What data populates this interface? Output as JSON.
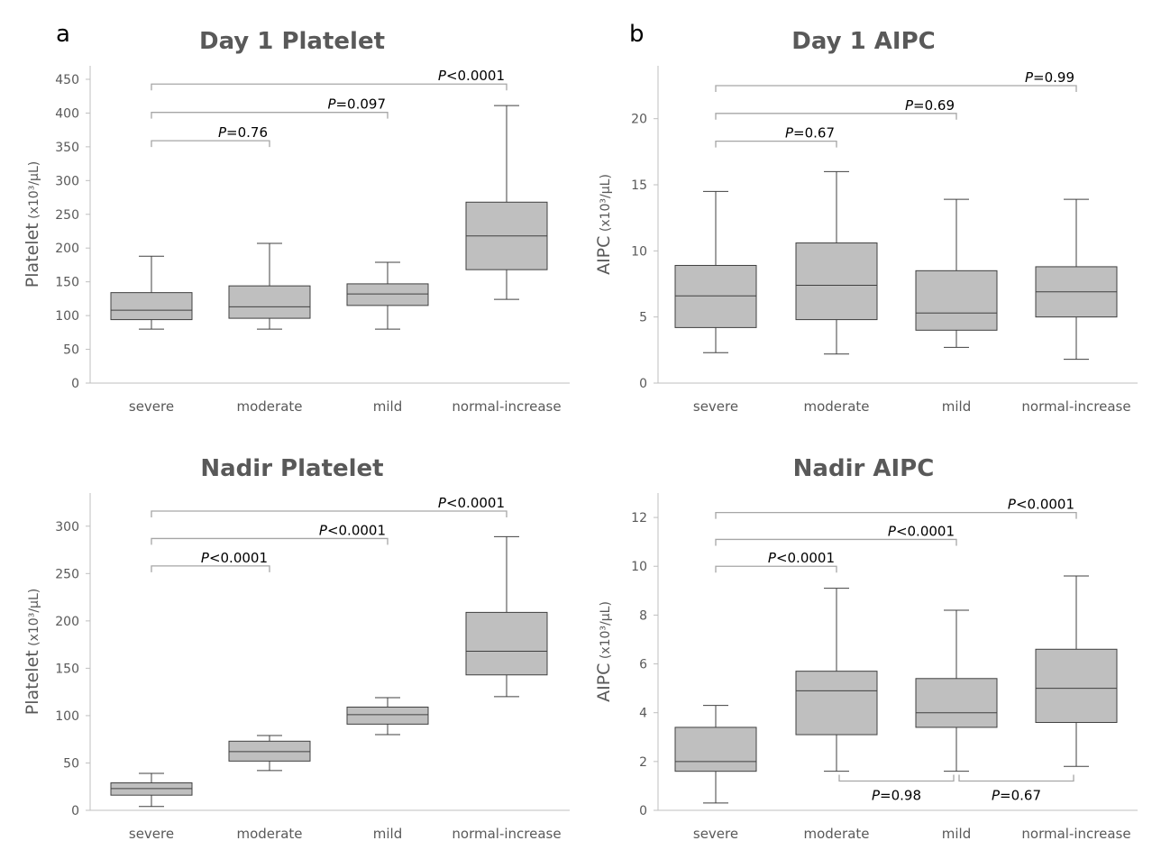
{
  "colors": {
    "box_fill": "#bfbfbf",
    "box_stroke": "#404040",
    "axis": "#bfbfbf",
    "bracket": "#a6a6a6",
    "text": "#595959"
  },
  "panel_labels": [
    "a",
    "b"
  ],
  "chart_data": [
    {
      "type": "box",
      "title": "Day 1 Platelet",
      "ylabel_main": "Platelet",
      "ylabel_unit": " (x10³/μL)",
      "ylim": [
        0,
        470
      ],
      "yticks": [
        0,
        50,
        100,
        150,
        200,
        250,
        300,
        350,
        400,
        450
      ],
      "categories": [
        "severe",
        "moderate",
        "mild",
        "normal-increase"
      ],
      "boxes": [
        {
          "min": 80,
          "q1": 94,
          "median": 108,
          "q3": 134,
          "max": 188
        },
        {
          "min": 80,
          "q1": 96,
          "median": 113,
          "q3": 144,
          "max": 207
        },
        {
          "min": 80,
          "q1": 115,
          "median": 132,
          "q3": 147,
          "max": 179
        },
        {
          "min": 124,
          "q1": 168,
          "median": 218,
          "q3": 268,
          "max": 411
        }
      ],
      "comparisons": [
        {
          "from": 0,
          "to": 1,
          "y": 359,
          "p": "=0.76"
        },
        {
          "from": 0,
          "to": 2,
          "y": 401,
          "p": "=0.097"
        },
        {
          "from": 0,
          "to": 3,
          "y": 443,
          "p": "<0.0001"
        }
      ]
    },
    {
      "type": "box",
      "title": "Day 1 AIPC",
      "ylabel_main": "AIPC",
      "ylabel_unit": " (x10³/μL)",
      "ylim": [
        0,
        24
      ],
      "yticks": [
        0,
        5,
        10,
        15,
        20
      ],
      "categories": [
        "severe",
        "moderate",
        "mild",
        "normal-increase"
      ],
      "boxes": [
        {
          "min": 2.3,
          "q1": 4.2,
          "median": 6.6,
          "q3": 8.9,
          "max": 14.5
        },
        {
          "min": 2.2,
          "q1": 4.8,
          "median": 7.4,
          "q3": 10.6,
          "max": 16.0
        },
        {
          "min": 2.7,
          "q1": 4.0,
          "median": 5.3,
          "q3": 8.5,
          "max": 13.9
        },
        {
          "min": 1.8,
          "q1": 5.0,
          "median": 6.9,
          "q3": 8.8,
          "max": 13.9
        }
      ],
      "comparisons": [
        {
          "from": 0,
          "to": 1,
          "y": 18.3,
          "p": "=0.67"
        },
        {
          "from": 0,
          "to": 2,
          "y": 20.4,
          "p": "=0.69"
        },
        {
          "from": 0,
          "to": 3,
          "y": 22.5,
          "p": "=0.99"
        }
      ]
    },
    {
      "type": "box",
      "title": "Nadir Platelet",
      "ylabel_main": "Platelet",
      "ylabel_unit": " (x10³/μL)",
      "ylim": [
        0,
        335
      ],
      "yticks": [
        0,
        50,
        100,
        150,
        200,
        250,
        300
      ],
      "categories": [
        "severe",
        "moderate",
        "mild",
        "normal-increase"
      ],
      "boxes": [
        {
          "min": 4,
          "q1": 16,
          "median": 23,
          "q3": 29,
          "max": 39
        },
        {
          "min": 42,
          "q1": 52,
          "median": 62,
          "q3": 73,
          "max": 79
        },
        {
          "min": 80,
          "q1": 91,
          "median": 101,
          "q3": 109,
          "max": 119
        },
        {
          "min": 120,
          "q1": 143,
          "median": 168,
          "q3": 209,
          "max": 289
        }
      ],
      "comparisons": [
        {
          "from": 0,
          "to": 1,
          "y": 258,
          "p": "<0.0001"
        },
        {
          "from": 0,
          "to": 2,
          "y": 287,
          "p": "<0.0001"
        },
        {
          "from": 0,
          "to": 3,
          "y": 316,
          "p": "<0.0001"
        }
      ]
    },
    {
      "type": "box",
      "title": "Nadir AIPC",
      "ylabel_main": "AIPC",
      "ylabel_unit": " (x10³/μL)",
      "ylim": [
        0,
        13
      ],
      "yticks": [
        0,
        2,
        4,
        6,
        8,
        10,
        12
      ],
      "categories": [
        "severe",
        "moderate",
        "mild",
        "normal-increase"
      ],
      "boxes": [
        {
          "min": 0.3,
          "q1": 1.6,
          "median": 2.0,
          "q3": 3.4,
          "max": 4.3
        },
        {
          "min": 1.6,
          "q1": 3.1,
          "median": 4.9,
          "q3": 5.7,
          "max": 9.1
        },
        {
          "min": 1.6,
          "q1": 3.4,
          "median": 4.0,
          "q3": 5.4,
          "max": 8.2
        },
        {
          "min": 1.8,
          "q1": 3.6,
          "median": 5.0,
          "q3": 6.6,
          "max": 9.6
        }
      ],
      "comparisons": [
        {
          "from": 0,
          "to": 1,
          "y": 10.0,
          "p": "<0.0001"
        },
        {
          "from": 0,
          "to": 2,
          "y": 11.1,
          "p": "<0.0001"
        },
        {
          "from": 0,
          "to": 3,
          "y": 12.2,
          "p": "<0.0001"
        },
        {
          "from": 1,
          "to": 2,
          "y": 1.2,
          "p": "=0.98",
          "below": true
        },
        {
          "from": 2,
          "to": 3,
          "y": 1.2,
          "p": "=0.67",
          "below": true
        }
      ]
    }
  ]
}
